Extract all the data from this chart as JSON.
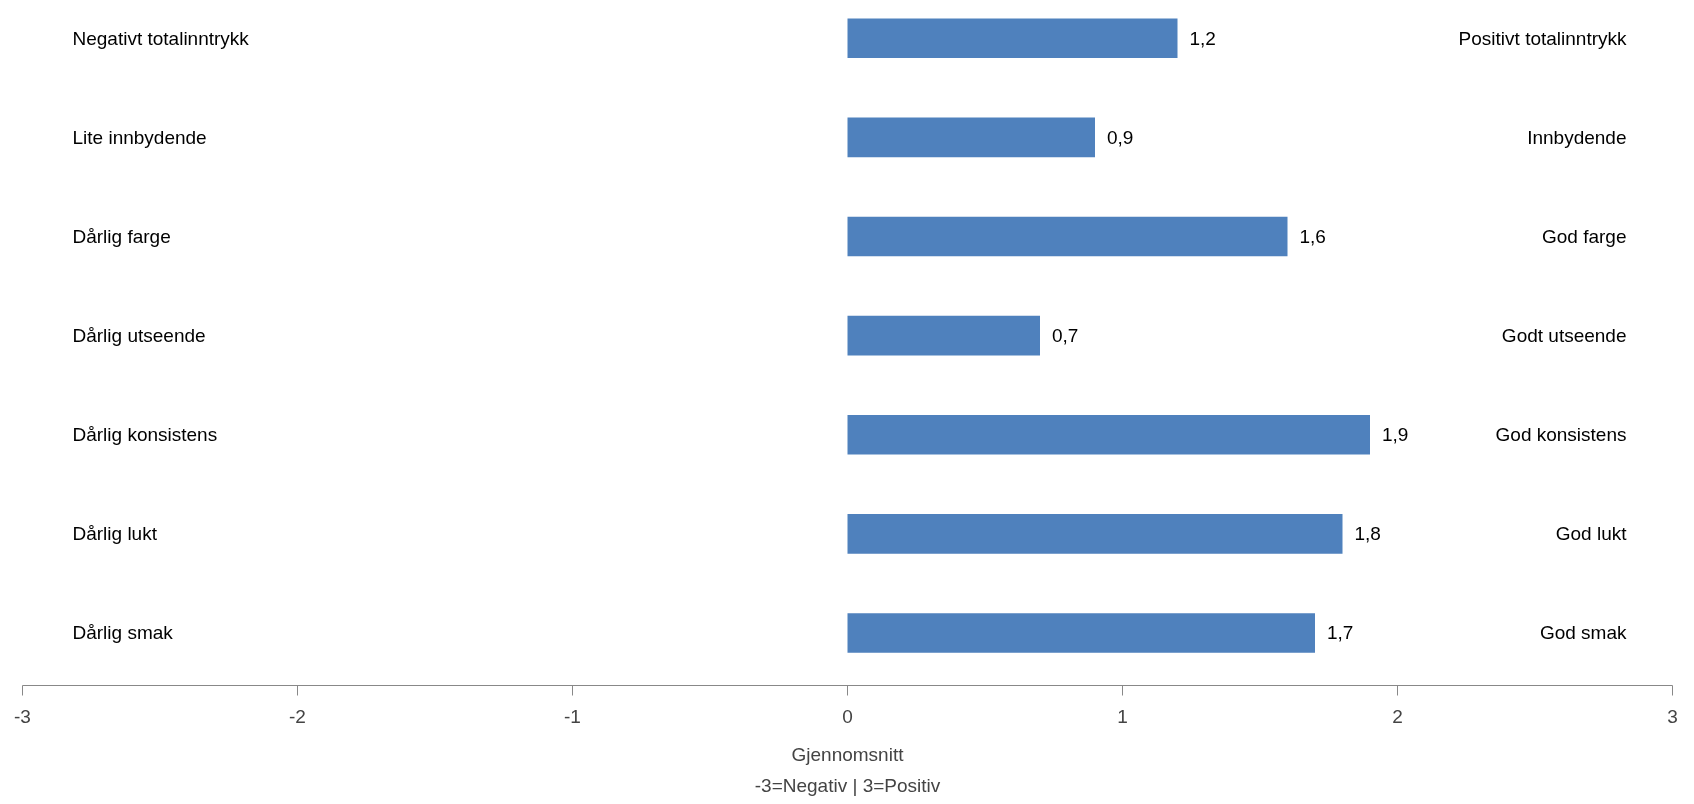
{
  "chart_data": {
    "type": "bar",
    "orientation": "horizontal",
    "xlabel": "Gjennomsnitt",
    "categories": [
      "Negativt totalinntrykk",
      "Lite innbydende",
      "Dårlig farge",
      "Dårlig utseende",
      "Dårlig konsistens",
      "Dårlig lukt",
      "Dårlig smak"
    ],
    "values": [
      1.2,
      0.9,
      1.6,
      0.7,
      1.9,
      1.8,
      1.7
    ],
    "value_labels": [
      "1,2",
      "0,9",
      "1,6",
      "0,7",
      "1,9",
      "1,8",
      "1,7"
    ],
    "color": "#4f81bd",
    "xlim": [
      -3,
      3
    ],
    "xticks": [
      -3,
      -2,
      -1,
      0,
      1,
      2,
      3
    ],
    "grid": false,
    "annotations": [
      "Positivt totalinntrykk",
      "Innbydende",
      "God farge",
      "Godt utseende",
      "God konsistens",
      "God lukt",
      "God smak",
      "-3=Negativ | 3=Positiv"
    ]
  }
}
